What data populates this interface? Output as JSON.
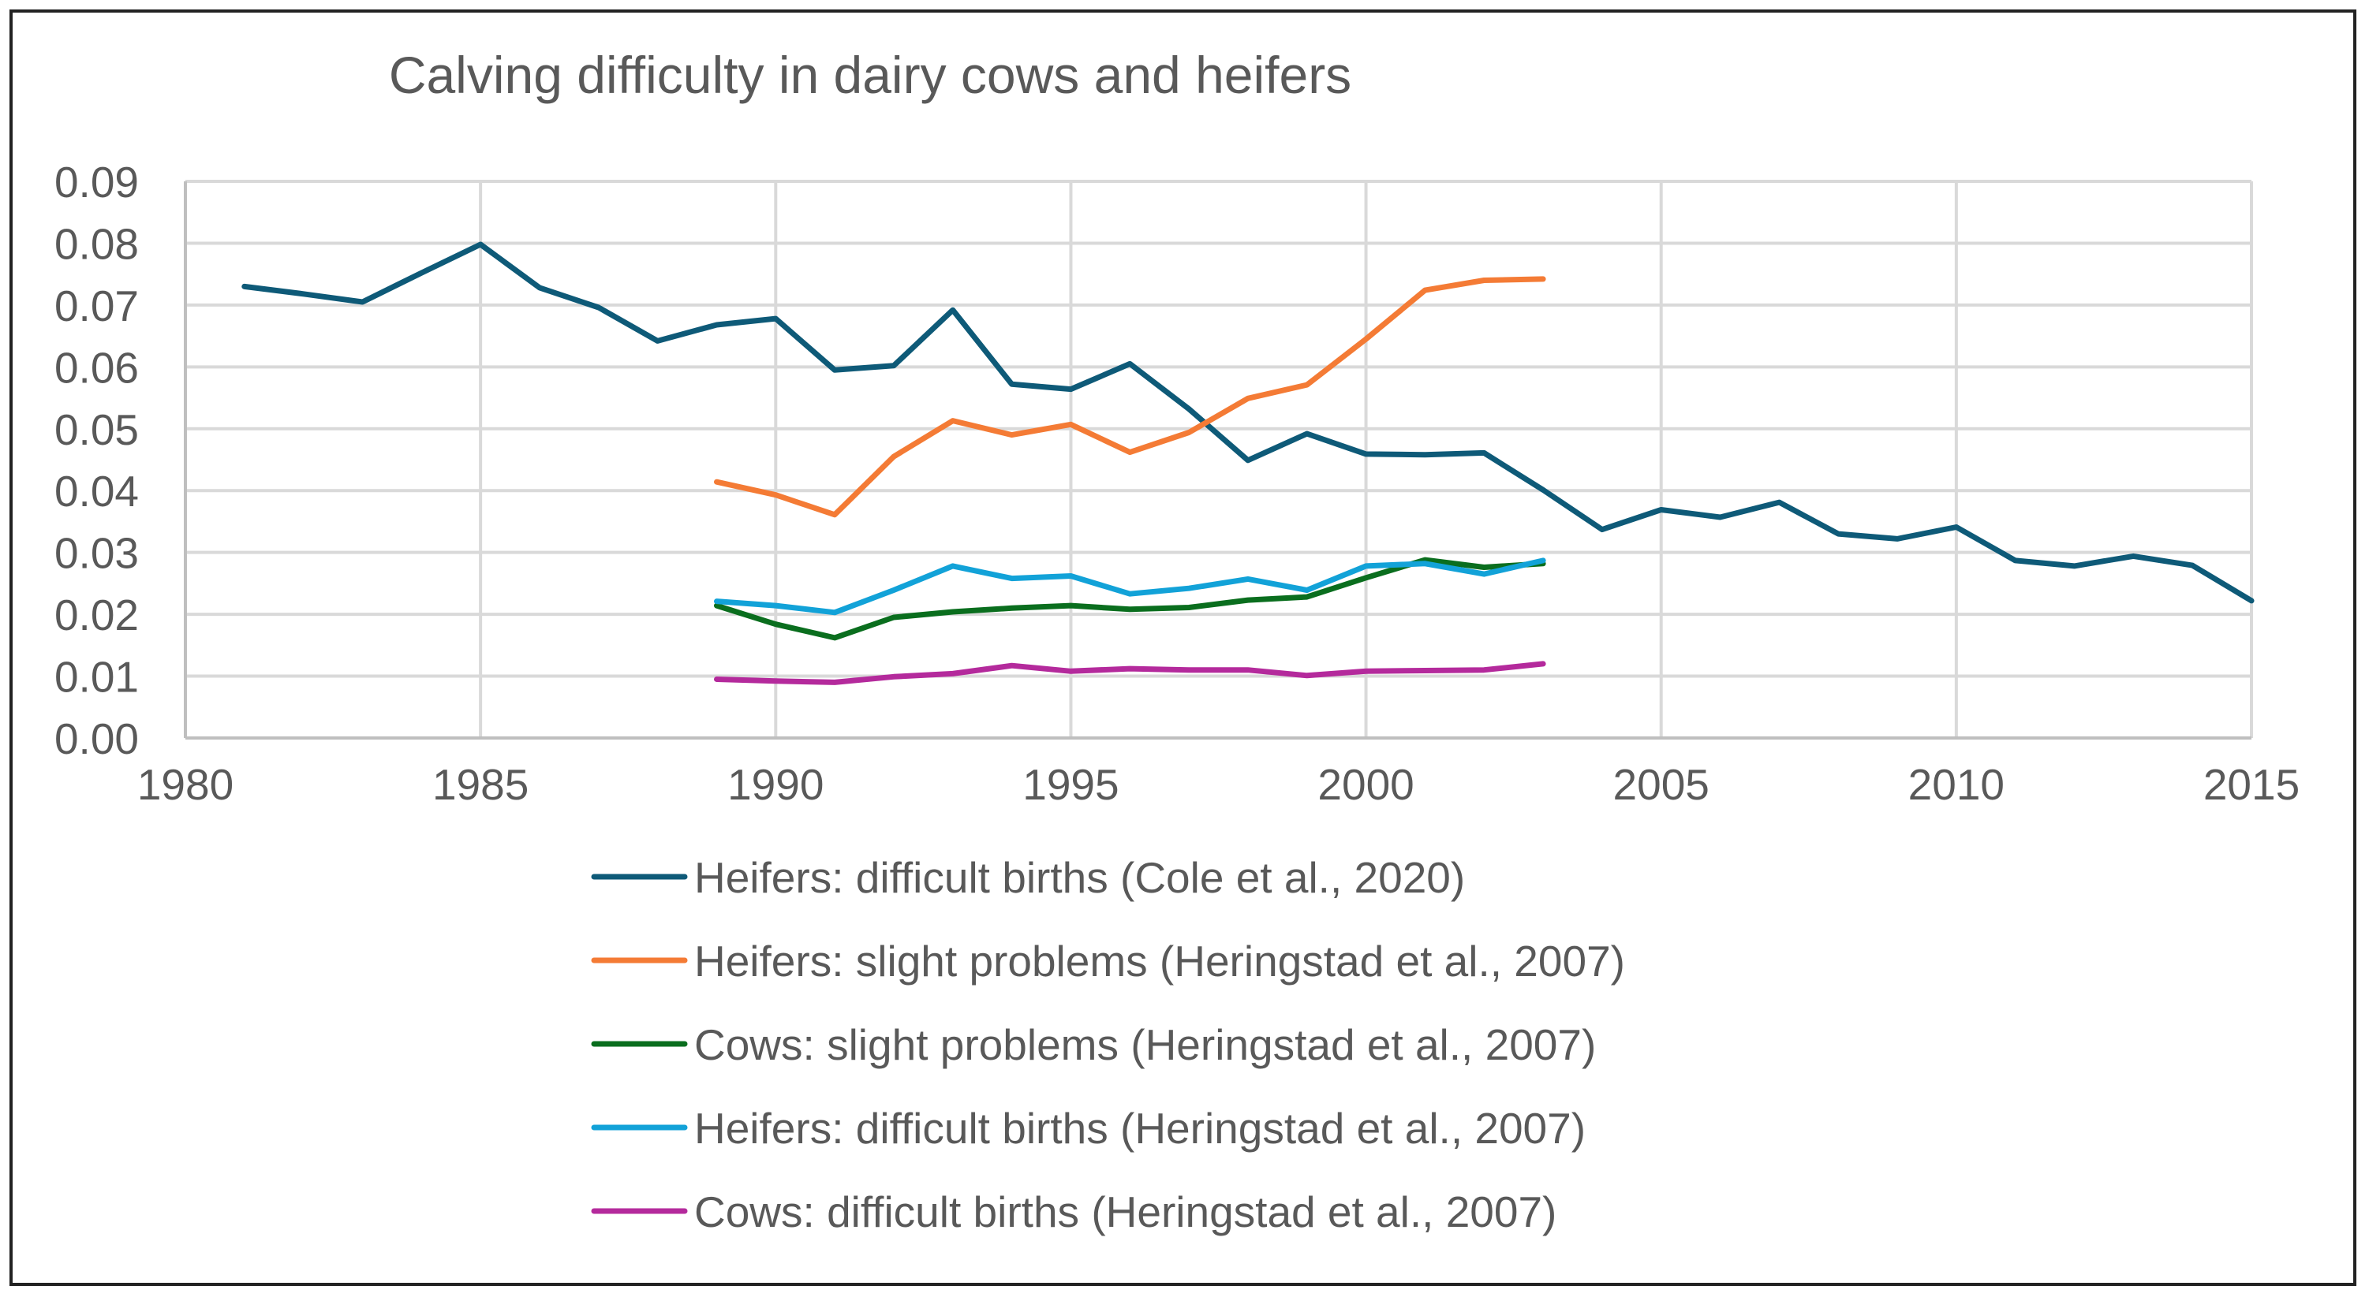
{
  "chart_data": {
    "type": "line",
    "title": "Calving difficulty in dairy cows and heifers",
    "xlabel": "",
    "ylabel": "",
    "xlim": [
      1980,
      2015
    ],
    "ylim": [
      0,
      0.09
    ],
    "x_ticks": [
      "1980",
      "1985",
      "1990",
      "1995",
      "2000",
      "2005",
      "2010",
      "2015"
    ],
    "y_ticks": [
      "0.00",
      "0.01",
      "0.02",
      "0.03",
      "0.04",
      "0.05",
      "0.06",
      "0.07",
      "0.08",
      "0.09"
    ],
    "grid": true,
    "legend_position": "bottom",
    "series": [
      {
        "name": "Heifers: difficult births (Cole et al., 2020)",
        "color": "#0e5a78",
        "x": [
          1981,
          1982,
          1983,
          1984,
          1985,
          1986,
          1987,
          1988,
          1989,
          1990,
          1991,
          1992,
          1993,
          1994,
          1995,
          1996,
          1997,
          1998,
          1999,
          2000,
          2001,
          2002,
          2003,
          2004,
          2005,
          2006,
          2007,
          2008,
          2009,
          2010,
          2011,
          2012,
          2013,
          2014,
          2015
        ],
        "values": [
          0.073,
          0.0718,
          0.0705,
          0.0752,
          0.0798,
          0.0728,
          0.0696,
          0.0642,
          0.0668,
          0.0678,
          0.0595,
          0.0602,
          0.0692,
          0.0572,
          0.0564,
          0.0605,
          0.0532,
          0.0449,
          0.0492,
          0.0459,
          0.0458,
          0.0461,
          0.0401,
          0.0337,
          0.0369,
          0.0357,
          0.0381,
          0.033,
          0.0322,
          0.0341,
          0.0287,
          0.0278,
          0.0294,
          0.0279,
          0.0222
        ]
      },
      {
        "name": "Heifers: slight problems (Heringstad et al., 2007)",
        "color": "#f47b35",
        "x": [
          1989,
          1990,
          1991,
          1992,
          1993,
          1994,
          1995,
          1996,
          1997,
          1998,
          1999,
          2000,
          2001,
          2002,
          2003
        ],
        "values": [
          0.0414,
          0.0393,
          0.0361,
          0.0455,
          0.0513,
          0.049,
          0.0507,
          0.0462,
          0.0494,
          0.0549,
          0.0571,
          0.0645,
          0.0724,
          0.074,
          0.0742
        ]
      },
      {
        "name": "Cows: slight problems (Heringstad et al., 2007)",
        "color": "#0a6e1e",
        "x": [
          1989,
          1990,
          1991,
          1992,
          1993,
          1994,
          1995,
          1996,
          1997,
          1998,
          1999,
          2000,
          2001,
          2002,
          2003
        ],
        "values": [
          0.0214,
          0.0184,
          0.0162,
          0.0195,
          0.0204,
          0.021,
          0.0214,
          0.0208,
          0.0211,
          0.0223,
          0.0228,
          0.0259,
          0.0288,
          0.0276,
          0.0282
        ]
      },
      {
        "name": "Heifers: difficult births (Heringstad et al., 2007)",
        "color": "#12a2d8",
        "x": [
          1989,
          1990,
          1991,
          1992,
          1993,
          1994,
          1995,
          1996,
          1997,
          1998,
          1999,
          2000,
          2001,
          2002,
          2003
        ],
        "values": [
          0.0221,
          0.0214,
          0.0203,
          0.0239,
          0.0278,
          0.0258,
          0.0262,
          0.0233,
          0.0242,
          0.0257,
          0.0239,
          0.0278,
          0.0282,
          0.0265,
          0.0287
        ]
      },
      {
        "name": "Cows: difficult births (Heringstad et al., 2007)",
        "color": "#b42a9c",
        "x": [
          1989,
          1990,
          1991,
          1992,
          1993,
          1994,
          1995,
          1996,
          1997,
          1998,
          1999,
          2000,
          2001,
          2002,
          2003
        ],
        "values": [
          0.0095,
          0.0092,
          0.009,
          0.0099,
          0.0104,
          0.0117,
          0.0108,
          0.0112,
          0.011,
          0.011,
          0.0101,
          0.0108,
          0.0109,
          0.011,
          0.012
        ]
      }
    ]
  }
}
